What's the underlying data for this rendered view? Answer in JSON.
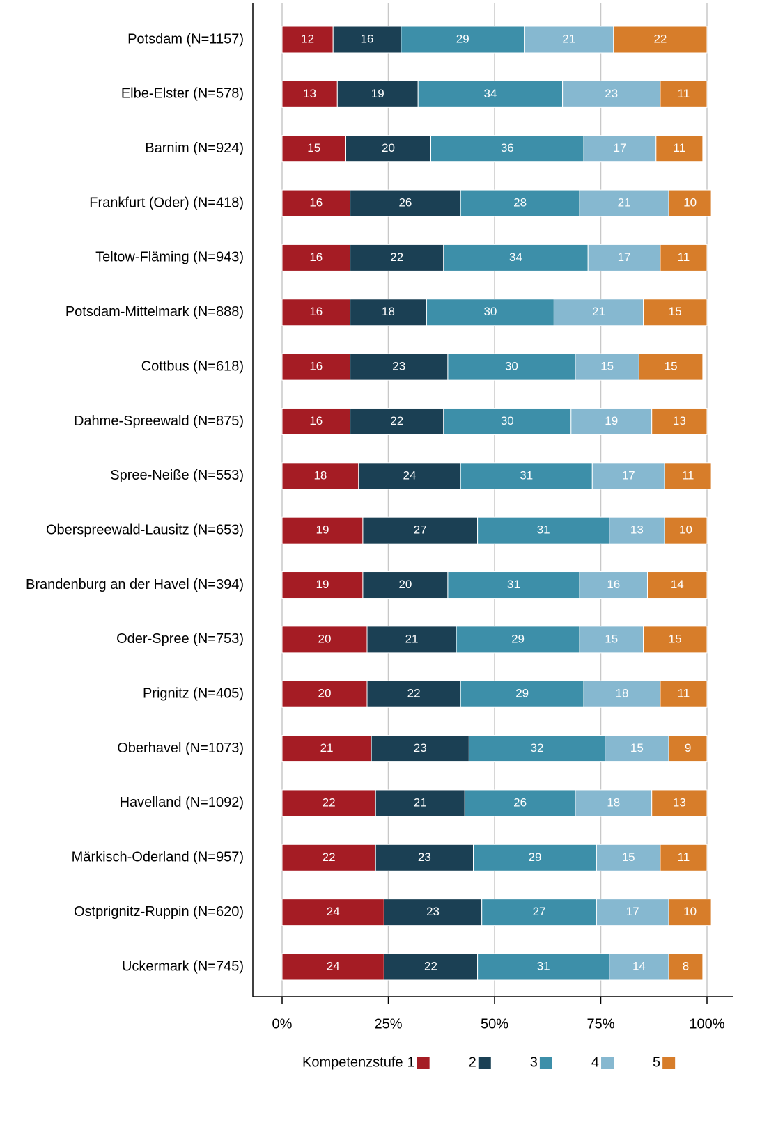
{
  "chart_data": {
    "type": "stacked_barh",
    "categories": [
      "Potsdam (N=1157)",
      "Elbe-Elster (N=578)",
      "Barnim (N=924)",
      "Frankfurt (Oder) (N=418)",
      "Teltow-Fläming (N=943)",
      "Potsdam-Mittelmark (N=888)",
      "Cottbus (N=618)",
      "Dahme-Spreewald (N=875)",
      "Spree-Neiße (N=553)",
      "Oberspreewald-Lausitz (N=653)",
      "Brandenburg an der Havel (N=394)",
      "Oder-Spree (N=753)",
      "Prignitz (N=405)",
      "Oberhavel (N=1073)",
      "Havelland (N=1092)",
      "Märkisch-Oderland (N=957)",
      "Ostprignitz-Ruppin (N=620)",
      "Uckermark (N=745)"
    ],
    "series": [
      {
        "name": "1",
        "color": "#a51c24",
        "values": [
          12,
          13,
          15,
          16,
          16,
          16,
          16,
          16,
          18,
          19,
          19,
          20,
          20,
          21,
          22,
          22,
          24,
          24
        ]
      },
      {
        "name": "2",
        "color": "#1b4054",
        "values": [
          16,
          19,
          20,
          26,
          22,
          18,
          23,
          22,
          24,
          27,
          20,
          21,
          22,
          23,
          21,
          23,
          23,
          22
        ]
      },
      {
        "name": "3",
        "color": "#3d8fa9",
        "values": [
          29,
          34,
          36,
          28,
          34,
          30,
          30,
          30,
          31,
          31,
          31,
          29,
          29,
          32,
          26,
          29,
          27,
          31
        ]
      },
      {
        "name": "4",
        "color": "#86b8d0",
        "values": [
          21,
          23,
          17,
          21,
          17,
          21,
          15,
          19,
          17,
          13,
          16,
          15,
          18,
          15,
          18,
          15,
          17,
          14
        ]
      },
      {
        "name": "5",
        "color": "#d77d2a",
        "values": [
          22,
          11,
          11,
          10,
          11,
          15,
          15,
          13,
          11,
          10,
          14,
          15,
          11,
          9,
          13,
          11,
          10,
          8
        ]
      }
    ],
    "legend_title": "Kompetenzstufe",
    "xlim": [
      0,
      100
    ],
    "xticks": [
      {
        "value": 0,
        "label": "0%"
      },
      {
        "value": 25,
        "label": "25%"
      },
      {
        "value": 50,
        "label": "50%"
      },
      {
        "value": 75,
        "label": "75%"
      },
      {
        "value": 100,
        "label": "100%"
      }
    ],
    "grid": true,
    "legend": "bottom"
  }
}
